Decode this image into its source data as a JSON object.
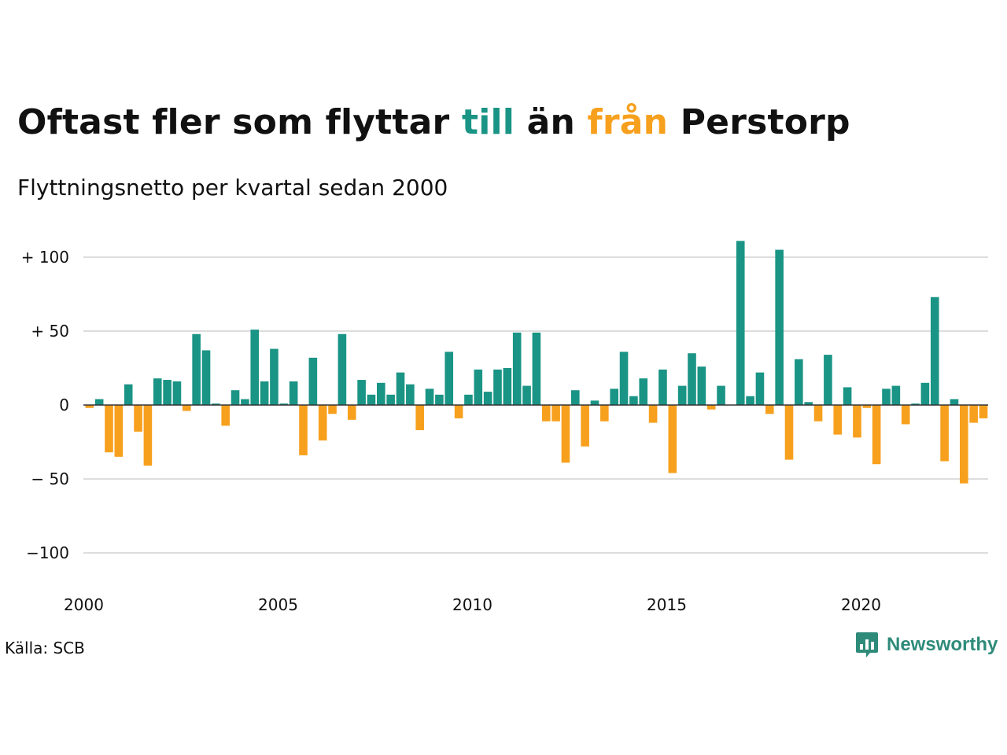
{
  "title": {
    "part1": "Oftast fler som flyttar ",
    "part2": "till",
    "part3": " än ",
    "part4": "från",
    "part5": " Perstorp"
  },
  "subtitle": "Flyttningsnetto per kvartal sedan 2000",
  "source": "Källa: SCB",
  "brand": {
    "name": "Newsworthy",
    "icon": "newsworthy-logo-icon"
  },
  "colors": {
    "positive": "#1a9485",
    "negative": "#f7a01d",
    "grid": "#dddddd",
    "zero": "#333333",
    "title_till": "#1a9485",
    "title_fran": "#f7a01d"
  },
  "chart_data": {
    "type": "bar",
    "start": "2000 Q1",
    "frequency": "quarterly",
    "values": [
      -2,
      4,
      -32,
      -35,
      14,
      -18,
      -41,
      18,
      17,
      16,
      -4,
      48,
      37,
      1,
      -14,
      10,
      4,
      51,
      16,
      38,
      1,
      16,
      -34,
      32,
      -24,
      -6,
      48,
      -10,
      17,
      7,
      15,
      7,
      22,
      14,
      -17,
      11,
      7,
      36,
      -9,
      7,
      24,
      9,
      24,
      25,
      49,
      13,
      49,
      -11,
      -11,
      -39,
      10,
      -28,
      3,
      -11,
      11,
      36,
      6,
      18,
      -12,
      24,
      -46,
      13,
      35,
      26,
      -3,
      13,
      0,
      111,
      6,
      22,
      -6,
      105,
      -37,
      31,
      2,
      -11,
      34,
      -20,
      12,
      -22,
      -2,
      -40,
      11,
      13,
      -13,
      1,
      15,
      73,
      -38,
      4,
      -53,
      -12,
      -9
    ],
    "ylim": [
      -120,
      120
    ],
    "yticks": [
      100,
      50,
      0,
      -50,
      -100
    ],
    "ytick_labels": [
      "+ 100",
      "+  50",
      "0",
      "− 50",
      "−100"
    ],
    "xticks": [
      "2000",
      "2005",
      "2010",
      "2015",
      "2020"
    ],
    "grid": true
  }
}
